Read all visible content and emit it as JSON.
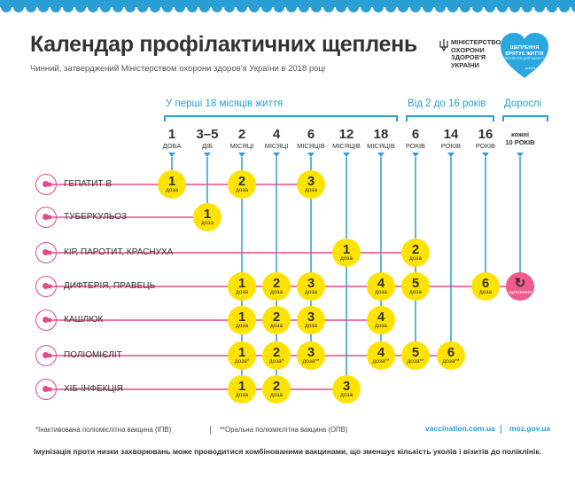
{
  "title": "Календар профілактичних щеплень",
  "subtitle": "Чинний, затверджений Міністерством охорони здоров'я України в 2018 році",
  "ministry": "МІНІСТЕРСТВО\nОХОРОНИ\nЗДОРОВ'Я\nУКРАЇНИ",
  "heart": {
    "text": "ЩЕПЛЕННЯ\nВРЯТУЄ ЖИТТЯ",
    "sub": "ЩЕПЛЕННЯ ДЛЯ ЗАХИСТУ",
    "unicef": "unicef"
  },
  "colors": {
    "accent": "#2a9fd6",
    "dose": "#ffe300",
    "pink": "#f25a8e",
    "band": "#2a9fd6"
  },
  "groups": {
    "infant": "У перші 18 місяців життя",
    "child": "Від 2 до 16 років",
    "adult": "Дорослі"
  },
  "columns": [
    {
      "num": "1",
      "unit": "доба"
    },
    {
      "num": "3–5",
      "unit": "діб"
    },
    {
      "num": "2",
      "unit": "місяці"
    },
    {
      "num": "4",
      "unit": "місяці"
    },
    {
      "num": "6",
      "unit": "місяців"
    },
    {
      "num": "12",
      "unit": "місяців"
    },
    {
      "num": "18",
      "unit": "місяців"
    },
    {
      "num": "6",
      "unit": "років"
    },
    {
      "num": "14",
      "unit": "років"
    },
    {
      "num": "16",
      "unit": "років"
    },
    {
      "num": "кожні",
      "unit": "10 років"
    }
  ],
  "vaccines": [
    {
      "name": "ГЕПАТИТ В",
      "icon": "hepatitis-b-virus-icon",
      "doses": [
        {
          "col": 0,
          "n": "1",
          "l": "доза"
        },
        {
          "col": 2,
          "n": "2",
          "l": "доза"
        },
        {
          "col": 4,
          "n": "3",
          "l": "доза"
        }
      ]
    },
    {
      "name": "ТУБЕРКУЛЬОЗ",
      "icon": "tuberculosis-bacteria-icon",
      "doses": [
        {
          "col": 1,
          "n": "1",
          "l": "доза"
        }
      ]
    },
    {
      "name": "КІР, ПАРОТИТ, КРАСНУХА",
      "icon": "measles-virus-icon",
      "doses": [
        {
          "col": 5,
          "n": "1",
          "l": "доза"
        },
        {
          "col": 7,
          "n": "2",
          "l": "доза"
        }
      ]
    },
    {
      "name": "ДИФТЕРІЯ, ПРАВЕЦЬ",
      "icon": "diphtheria-bacteria-icon",
      "doses": [
        {
          "col": 2,
          "n": "1",
          "l": "доза"
        },
        {
          "col": 3,
          "n": "2",
          "l": "доза"
        },
        {
          "col": 4,
          "n": "3",
          "l": "доза"
        },
        {
          "col": 6,
          "n": "4",
          "l": "доза"
        },
        {
          "col": 7,
          "n": "5",
          "l": "доза"
        },
        {
          "col": 9,
          "n": "6",
          "l": "доза"
        },
        {
          "col": 10,
          "n": "↻",
          "l": "щеплення",
          "pink": true
        }
      ]
    },
    {
      "name": "КАШЛЮК",
      "icon": "pertussis-bacteria-icon",
      "doses": [
        {
          "col": 2,
          "n": "1",
          "l": "доза"
        },
        {
          "col": 3,
          "n": "2",
          "l": "доза"
        },
        {
          "col": 4,
          "n": "3",
          "l": "доза"
        },
        {
          "col": 6,
          "n": "4",
          "l": "доза"
        }
      ]
    },
    {
      "name": "ПОЛІОМІЄЛІТ",
      "icon": "polio-virus-icon",
      "doses": [
        {
          "col": 2,
          "n": "1",
          "l": "доза*"
        },
        {
          "col": 3,
          "n": "2",
          "l": "доза*"
        },
        {
          "col": 4,
          "n": "3",
          "l": "доза**"
        },
        {
          "col": 6,
          "n": "4",
          "l": "доза**"
        },
        {
          "col": 7,
          "n": "5",
          "l": "доза**"
        },
        {
          "col": 8,
          "n": "6",
          "l": "доза**"
        }
      ]
    },
    {
      "name": "ХІБ-ІНФЕКЦІЯ",
      "icon": "hib-bacteria-icon",
      "doses": [
        {
          "col": 2,
          "n": "1",
          "l": "доза"
        },
        {
          "col": 3,
          "n": "2",
          "l": "доза"
        },
        {
          "col": 5,
          "n": "3",
          "l": "доза"
        }
      ]
    }
  ],
  "footnotes": {
    "ipv": "*Інактивована поліомієлітна вакцина (ІПВ)",
    "opv": "**Оральна поліомієлітна вакцина (ОПВ)"
  },
  "links": {
    "vaccination": "vaccination.com.ua",
    "moz": "moz.gov.ua"
  },
  "note": "Імунізація проти низки захворювань може проводитися комбінованими вакцинами, що зменшує кількість уколів і візитів до поліклінік."
}
